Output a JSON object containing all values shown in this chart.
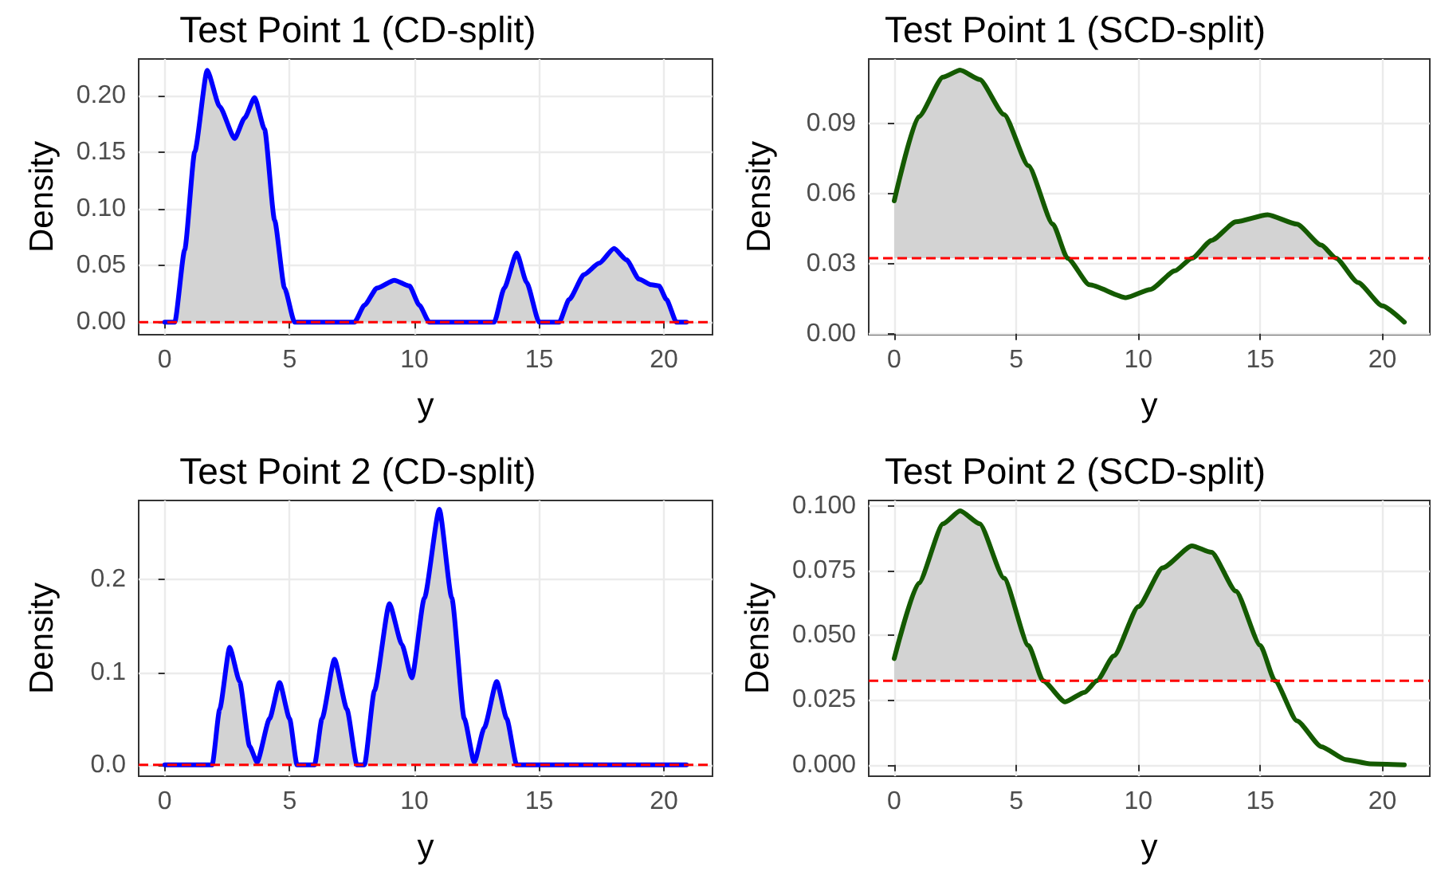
{
  "chart_data": [
    {
      "type": "line",
      "title": "Test Point 1 (CD-split)",
      "xlabel": "y",
      "ylabel": "Density",
      "grid": true,
      "x": [
        0,
        0.4,
        0.8,
        1.2,
        1.7,
        2.2,
        2.8,
        3.2,
        3.6,
        4.0,
        4.4,
        4.8,
        5.2,
        7.6,
        8.0,
        8.5,
        9.2,
        9.8,
        10.2,
        10.6,
        13.2,
        13.6,
        14.1,
        14.5,
        15.0,
        15.8,
        16.2,
        16.8,
        17.4,
        18.0,
        18.5,
        19.0,
        19.5,
        19.8,
        20.1,
        20.5,
        20.9
      ],
      "series": [
        {
          "color": "#0000ff",
          "values": [
            0,
            0,
            0.064,
            0.15,
            0.222,
            0.19,
            0.162,
            0.18,
            0.198,
            0.17,
            0.09,
            0.03,
            0,
            0,
            0.015,
            0.03,
            0.037,
            0.032,
            0.015,
            0,
            0,
            0.03,
            0.061,
            0.035,
            0,
            0,
            0.02,
            0.042,
            0.052,
            0.065,
            0.055,
            0.038,
            0.033,
            0.032,
            0.02,
            0,
            0
          ],
          "lower": [
            0,
            0,
            0,
            0,
            0,
            0,
            0,
            0,
            0,
            0,
            0,
            0,
            0,
            0,
            0,
            0,
            0,
            0,
            0,
            0,
            0,
            0,
            0,
            0,
            0,
            0,
            0,
            0,
            0,
            0,
            0,
            0,
            0,
            0,
            0,
            0,
            0
          ],
          "upper": [
            0,
            0,
            0.064,
            0.15,
            0.222,
            0.19,
            0.162,
            0.18,
            0.198,
            0.17,
            0.09,
            0.03,
            0,
            0,
            0.015,
            0.03,
            0.037,
            0.032,
            0.015,
            0,
            0,
            0.03,
            0.061,
            0.035,
            0,
            0,
            0.02,
            0.042,
            0.052,
            0.065,
            0.055,
            0.038,
            0.033,
            0.032,
            0.02,
            0,
            0
          ]
        }
      ],
      "xlim": [
        -1.045,
        21.945
      ],
      "xticks": [
        0,
        5,
        10,
        15,
        20
      ],
      "ylim": [
        -0.011,
        0.232
      ],
      "yticks": [
        {
          "value": 0,
          "label": "0.00"
        },
        {
          "value": 0.05,
          "label": "0.05"
        },
        {
          "value": 0.1,
          "label": "0.10"
        },
        {
          "value": 0.15,
          "label": "0.15"
        },
        {
          "value": 0.2,
          "label": "0.20"
        }
      ],
      "ref_lines": [
        {
          "axis": "y",
          "value": 0,
          "color": "#ff0000",
          "line_style": "dashed"
        }
      ]
    },
    {
      "type": "line",
      "title": "Test Point 1 (SCD-split)",
      "xlabel": "y",
      "ylabel": "Density",
      "grid": true,
      "x": [
        0,
        1,
        2,
        2.7,
        3.5,
        4.5,
        5.5,
        6.5,
        7.1,
        8,
        9.5,
        10.5,
        11.5,
        12.2,
        13,
        14,
        15.3,
        16.5,
        17.5,
        18.1,
        19,
        20,
        20.9
      ],
      "series": [
        {
          "color": "#145a00",
          "values": [
            0.057,
            0.093,
            0.11,
            0.113,
            0.109,
            0.094,
            0.072,
            0.047,
            0.0324,
            0.021,
            0.0155,
            0.019,
            0.027,
            0.0324,
            0.04,
            0.048,
            0.051,
            0.047,
            0.038,
            0.0324,
            0.022,
            0.012,
            0.005
          ],
          "lower": [
            0.0324,
            0.0324,
            0.0324,
            0.0324,
            0.0324,
            0.0324,
            0.0324,
            0.0324,
            0.0324,
            null,
            null,
            null,
            null,
            0.0324,
            0.0324,
            0.0324,
            0.0324,
            0.0324,
            0.0324,
            0.0324,
            null,
            null,
            null
          ],
          "upper": [
            0.057,
            0.093,
            0.11,
            0.113,
            0.109,
            0.094,
            0.072,
            0.047,
            0.0324,
            null,
            null,
            null,
            null,
            0.0324,
            0.04,
            0.048,
            0.051,
            0.047,
            0.038,
            0.0324,
            null,
            null,
            null
          ]
        }
      ],
      "xlim": [
        -1.045,
        21.945
      ],
      "xticks": [
        0,
        5,
        10,
        15,
        20
      ],
      "ylim": [
        -0.0004,
        0.1178
      ],
      "yticks": [
        {
          "value": 0,
          "label": "0.00"
        },
        {
          "value": 0.03,
          "label": "0.03"
        },
        {
          "value": 0.06,
          "label": "0.06"
        },
        {
          "value": 0.09,
          "label": "0.09"
        }
      ],
      "ref_lines": [
        {
          "axis": "y",
          "value": 0.0324,
          "color": "#ff0000",
          "line_style": "dashed"
        }
      ]
    },
    {
      "type": "line",
      "title": "Test Point 2 (CD-split)",
      "xlabel": "y",
      "ylabel": "Density",
      "grid": true,
      "x": [
        0,
        1.9,
        2.2,
        2.6,
        3.0,
        3.4,
        3.7,
        4.2,
        4.6,
        5.0,
        5.3,
        6.0,
        6.3,
        6.8,
        7.3,
        7.7,
        8.0,
        8.4,
        9.0,
        9.5,
        9.9,
        10.4,
        11.0,
        11.5,
        12.0,
        12.4,
        12.8,
        13.3,
        13.7,
        14.1,
        20.9
      ],
      "series": [
        {
          "color": "#0000ff",
          "values": [
            0,
            0,
            0.06,
            0.127,
            0.09,
            0.02,
            0.003,
            0.05,
            0.089,
            0.05,
            0,
            0,
            0.05,
            0.114,
            0.06,
            0,
            0,
            0.08,
            0.174,
            0.13,
            0.094,
            0.18,
            0.276,
            0.18,
            0.05,
            0.003,
            0.04,
            0.09,
            0.05,
            0,
            0
          ],
          "lower": [
            0,
            0,
            0,
            0,
            0,
            0,
            0,
            0,
            0,
            0,
            0,
            0,
            0,
            0,
            0,
            0,
            0,
            0,
            0,
            0,
            0,
            0,
            0,
            0,
            0,
            0,
            0,
            0,
            0,
            0,
            0
          ],
          "upper": [
            0,
            0,
            0.06,
            0.127,
            0.09,
            0.02,
            0.003,
            0.05,
            0.089,
            0.05,
            0,
            0,
            0.05,
            0.114,
            0.06,
            0,
            0,
            0.08,
            0.174,
            0.13,
            0.094,
            0.18,
            0.276,
            0.18,
            0.05,
            0.003,
            0.04,
            0.09,
            0.05,
            0,
            0
          ]
        }
      ],
      "xlim": [
        -1.045,
        21.945
      ],
      "xticks": [
        0,
        5,
        10,
        15,
        20
      ],
      "ylim": [
        -0.0122,
        0.2855
      ],
      "yticks": [
        {
          "value": 0,
          "label": "0.0"
        },
        {
          "value": 0.1,
          "label": "0.1"
        },
        {
          "value": 0.2,
          "label": "0.2"
        }
      ],
      "ref_lines": [
        {
          "axis": "y",
          "value": 0,
          "color": "#ff0000",
          "line_style": "dashed"
        }
      ]
    },
    {
      "type": "line",
      "title": "Test Point 2 (SCD-split)",
      "xlabel": "y",
      "ylabel": "Density",
      "grid": true,
      "x": [
        0,
        1,
        2,
        2.7,
        3.5,
        4.5,
        5.5,
        6.1,
        7.0,
        7.8,
        8.3,
        9,
        10,
        11,
        12.2,
        13,
        14,
        15,
        15.6,
        16.5,
        17.5,
        18.5,
        19.5,
        20.9
      ],
      "series": [
        {
          "color": "#145a00",
          "values": [
            0.041,
            0.07,
            0.093,
            0.098,
            0.093,
            0.072,
            0.046,
            0.0324,
            0.0243,
            0.028,
            0.0324,
            0.042,
            0.061,
            0.076,
            0.0845,
            0.082,
            0.067,
            0.046,
            0.0324,
            0.017,
            0.007,
            0.002,
            0.0004,
            0
          ],
          "lower": [
            0.0324,
            0.0324,
            0.0324,
            0.0324,
            0.0324,
            0.0324,
            0.0324,
            0.0324,
            null,
            null,
            0.0324,
            0.0324,
            0.0324,
            0.0324,
            0.0324,
            0.0324,
            0.0324,
            0.0324,
            0.0324,
            null,
            null,
            null,
            null,
            null
          ],
          "upper": [
            0.041,
            0.07,
            0.093,
            0.098,
            0.093,
            0.072,
            0.046,
            0.0324,
            null,
            null,
            0.0324,
            0.042,
            0.061,
            0.076,
            0.0845,
            0.082,
            0.067,
            0.046,
            0.0324,
            null,
            null,
            null,
            null,
            null
          ]
        }
      ],
      "xlim": [
        -1.045,
        21.945
      ],
      "xticks": [
        0,
        5,
        10,
        15,
        20
      ],
      "ylim": [
        -0.0044,
        0.102
      ],
      "yticks": [
        {
          "value": 0,
          "label": "0.000"
        },
        {
          "value": 0.025,
          "label": "0.025"
        },
        {
          "value": 0.05,
          "label": "0.050"
        },
        {
          "value": 0.075,
          "label": "0.075"
        },
        {
          "value": 0.1,
          "label": "0.100"
        }
      ],
      "ref_lines": [
        {
          "axis": "y",
          "value": 0.0324,
          "color": "#ff0000",
          "line_style": "dashed"
        }
      ]
    }
  ]
}
